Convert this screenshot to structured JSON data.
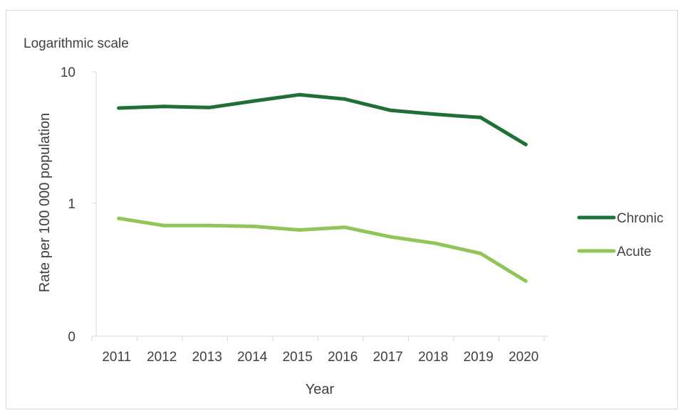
{
  "chart_data": {
    "type": "line",
    "scale_note": "Logarithmic scale",
    "xlabel": "Year",
    "ylabel": "Rate per 100 000 population",
    "y_scale": "log",
    "ylim": [
      0.1,
      10
    ],
    "y_ticks": [
      {
        "value": 10,
        "label": "10"
      },
      {
        "value": 1,
        "label": "1"
      },
      {
        "value": 0.1,
        "label": "0"
      }
    ],
    "categories": [
      "2011",
      "2012",
      "2013",
      "2014",
      "2015",
      "2016",
      "2017",
      "2018",
      "2019",
      "2020"
    ],
    "series": [
      {
        "name": "Chronic",
        "color": "#1e7034",
        "values": [
          5.3,
          5.45,
          5.35,
          6.0,
          6.7,
          6.2,
          5.1,
          4.75,
          4.5,
          2.8
        ]
      },
      {
        "name": "Acute",
        "color": "#92c558",
        "values": [
          0.77,
          0.68,
          0.68,
          0.67,
          0.63,
          0.66,
          0.56,
          0.5,
          0.42,
          0.26
        ]
      }
    ],
    "legend_position": "right",
    "grid": false
  }
}
